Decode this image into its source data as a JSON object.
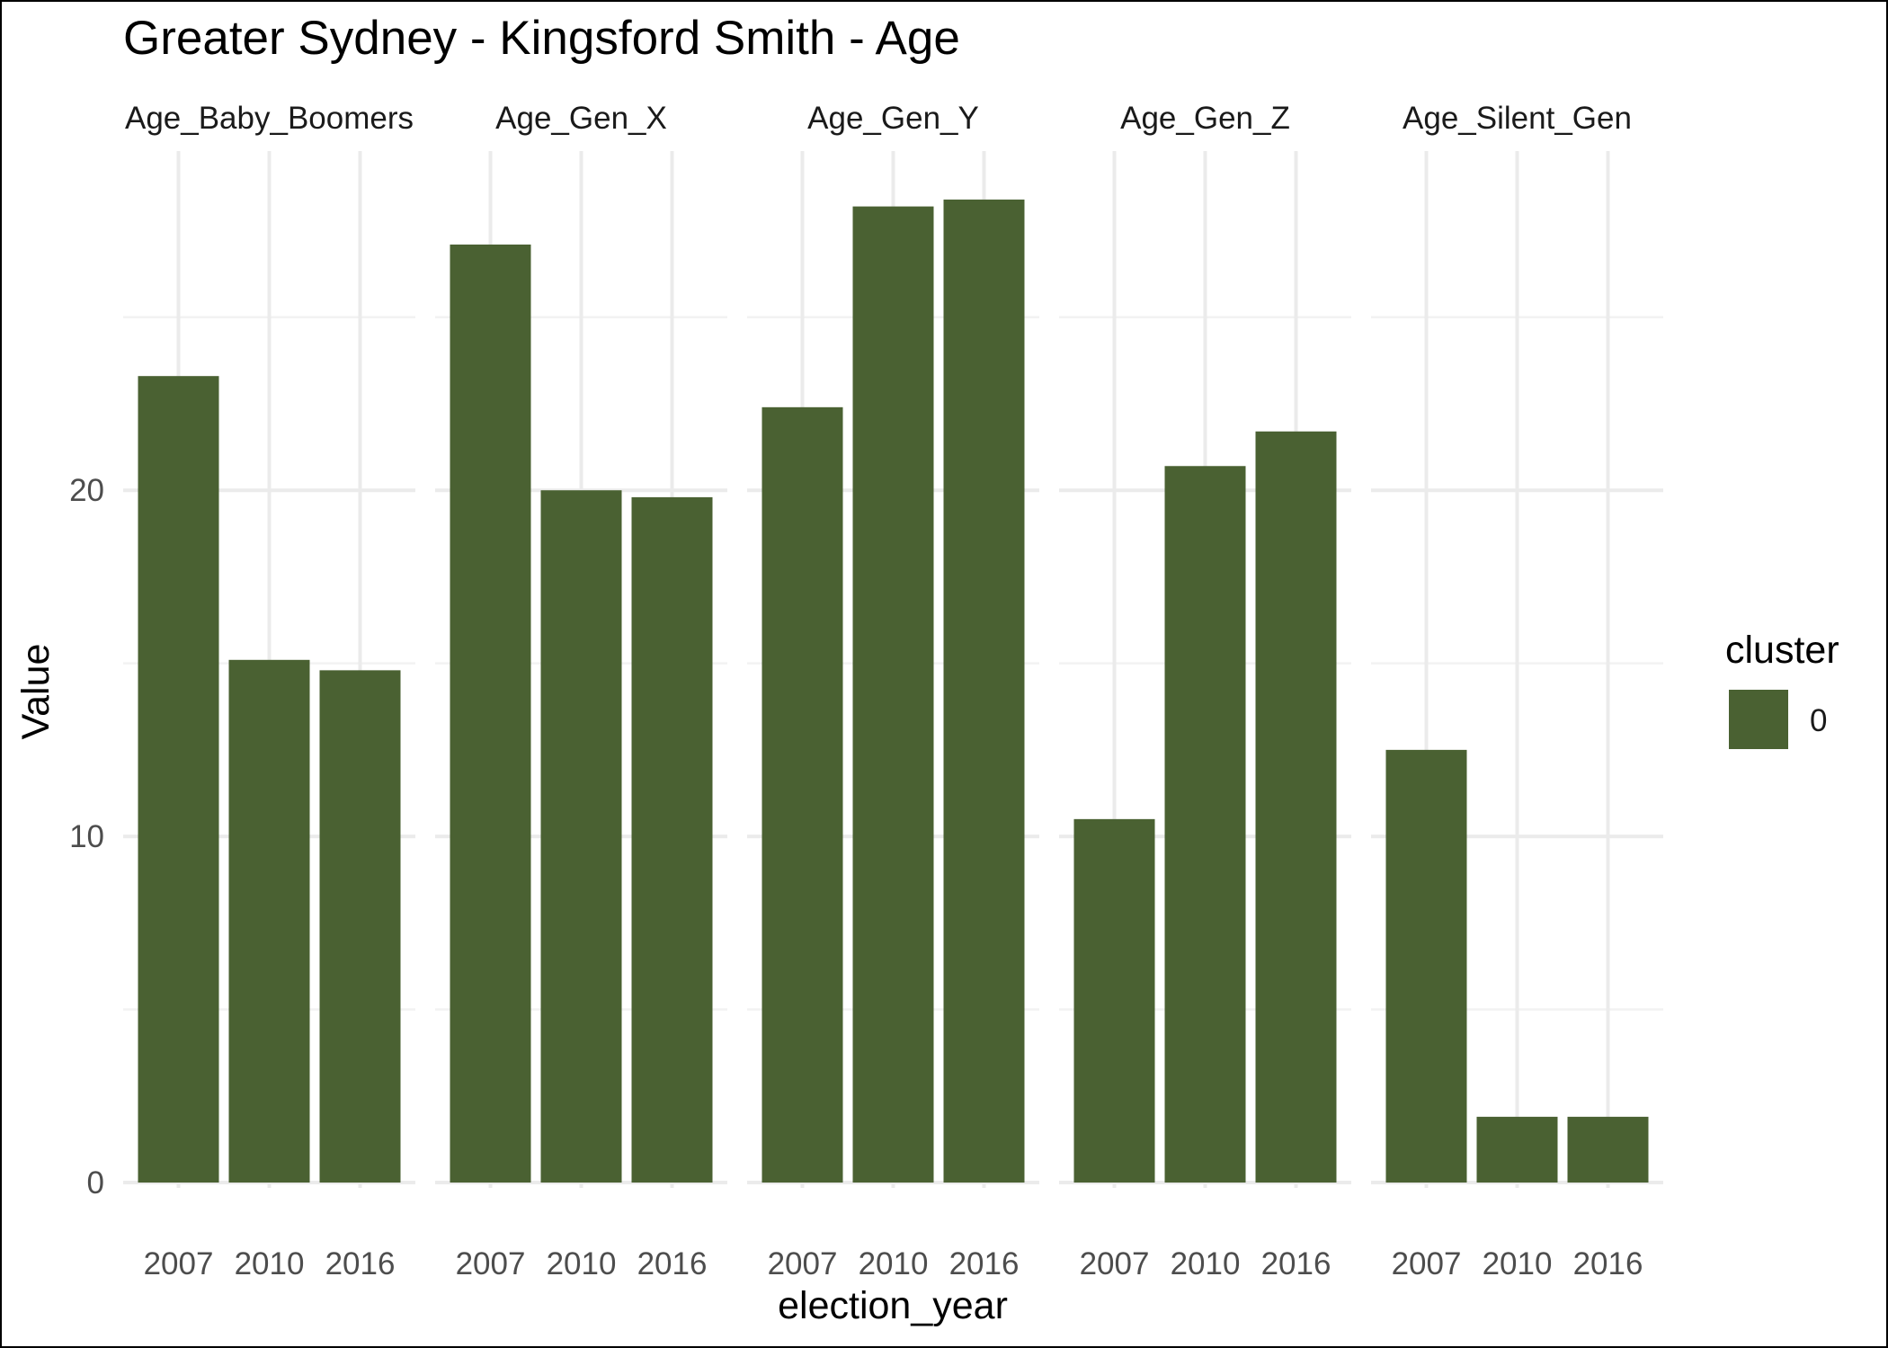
{
  "chart_data": {
    "type": "bar",
    "title": "Greater Sydney - Kingsford Smith - Age",
    "xlabel": "election_year",
    "ylabel": "Value",
    "ylim": [
      0,
      29.8
    ],
    "y_ticks": [
      0,
      10,
      20
    ],
    "grid": true,
    "categories": [
      "2007",
      "2010",
      "2016"
    ],
    "facets": [
      {
        "name": "Age_Baby_Boomers",
        "values": [
          23.3,
          15.1,
          14.8
        ]
      },
      {
        "name": "Age_Gen_X",
        "values": [
          27.1,
          20.0,
          19.8
        ]
      },
      {
        "name": "Age_Gen_Y",
        "values": [
          22.4,
          28.2,
          28.4
        ]
      },
      {
        "name": "Age_Gen_Z",
        "values": [
          10.5,
          20.7,
          21.7
        ]
      },
      {
        "name": "Age_Silent_Gen",
        "values": [
          12.5,
          1.9,
          1.9
        ]
      }
    ],
    "legend": {
      "title": "cluster",
      "entries": [
        "0"
      ],
      "position": "right"
    },
    "colors": {
      "bar": "#4a6132"
    }
  }
}
